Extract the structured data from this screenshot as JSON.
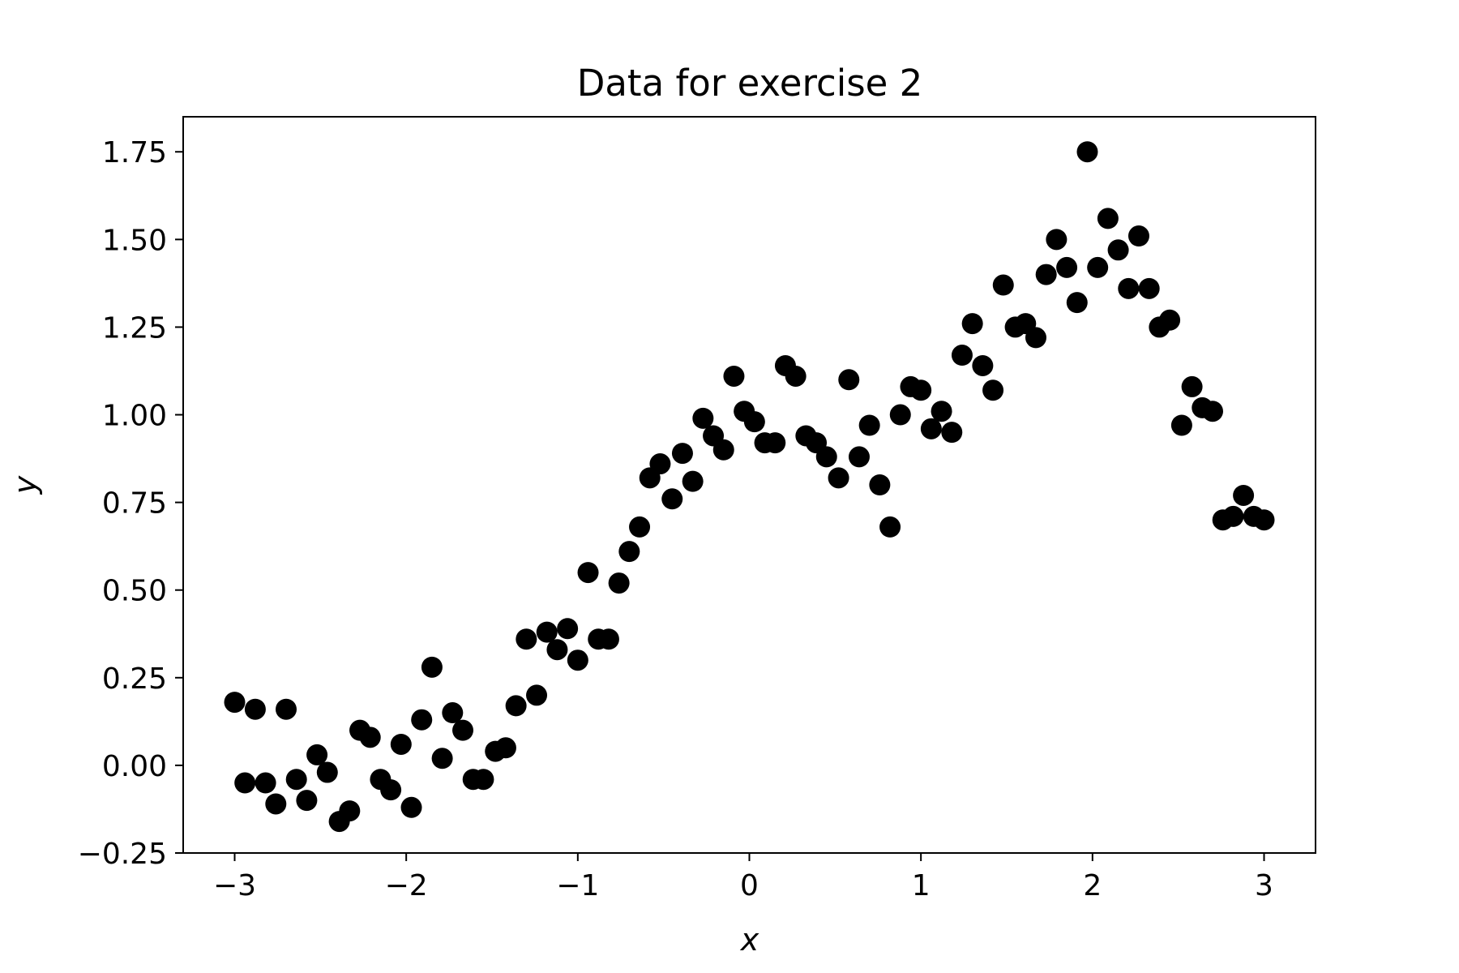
{
  "chart_data": {
    "type": "scatter",
    "title": "Data for exercise 2",
    "xlabel": "x",
    "ylabel": "y",
    "xlim": [
      -3.3,
      3.3
    ],
    "ylim": [
      -0.25,
      1.85
    ],
    "grid": false,
    "legend": "none",
    "marker_color": "#000000",
    "xticks": [
      -3,
      -2,
      -1,
      0,
      1,
      2,
      3
    ],
    "xtick_labels": [
      "−3",
      "−2",
      "−1",
      "0",
      "1",
      "2",
      "3"
    ],
    "yticks": [
      -0.25,
      0.0,
      0.25,
      0.5,
      0.75,
      1.0,
      1.25,
      1.5,
      1.75
    ],
    "ytick_labels": [
      "−0.25",
      "0.00",
      "0.25",
      "0.50",
      "0.75",
      "1.00",
      "1.25",
      "1.50",
      "1.75"
    ],
    "points": [
      [
        -3.0,
        0.18
      ],
      [
        -2.94,
        -0.05
      ],
      [
        -2.88,
        0.16
      ],
      [
        -2.82,
        -0.05
      ],
      [
        -2.76,
        -0.11
      ],
      [
        -2.7,
        0.16
      ],
      [
        -2.64,
        -0.04
      ],
      [
        -2.58,
        -0.1
      ],
      [
        -2.52,
        0.03
      ],
      [
        -2.46,
        -0.02
      ],
      [
        -2.39,
        -0.16
      ],
      [
        -2.33,
        -0.13
      ],
      [
        -2.27,
        0.1
      ],
      [
        -2.21,
        0.08
      ],
      [
        -2.15,
        -0.04
      ],
      [
        -2.09,
        -0.07
      ],
      [
        -2.03,
        0.06
      ],
      [
        -1.97,
        -0.12
      ],
      [
        -1.91,
        0.13
      ],
      [
        -1.85,
        0.28
      ],
      [
        -1.79,
        0.02
      ],
      [
        -1.73,
        0.15
      ],
      [
        -1.67,
        0.1
      ],
      [
        -1.61,
        -0.04
      ],
      [
        -1.55,
        -0.04
      ],
      [
        -1.48,
        0.04
      ],
      [
        -1.42,
        0.05
      ],
      [
        -1.36,
        0.17
      ],
      [
        -1.3,
        0.36
      ],
      [
        -1.24,
        0.2
      ],
      [
        -1.18,
        0.38
      ],
      [
        -1.12,
        0.33
      ],
      [
        -1.06,
        0.39
      ],
      [
        -1.0,
        0.3
      ],
      [
        -0.94,
        0.55
      ],
      [
        -0.88,
        0.36
      ],
      [
        -0.82,
        0.36
      ],
      [
        -0.76,
        0.52
      ],
      [
        -0.7,
        0.61
      ],
      [
        -0.64,
        0.68
      ],
      [
        -0.58,
        0.82
      ],
      [
        -0.52,
        0.86
      ],
      [
        -0.45,
        0.76
      ],
      [
        -0.39,
        0.89
      ],
      [
        -0.33,
        0.81
      ],
      [
        -0.27,
        0.99
      ],
      [
        -0.21,
        0.94
      ],
      [
        -0.15,
        0.9
      ],
      [
        -0.09,
        1.11
      ],
      [
        -0.03,
        1.01
      ],
      [
        0.03,
        0.98
      ],
      [
        0.09,
        0.92
      ],
      [
        0.15,
        0.92
      ],
      [
        0.21,
        1.14
      ],
      [
        0.27,
        1.11
      ],
      [
        0.33,
        0.94
      ],
      [
        0.39,
        0.92
      ],
      [
        0.45,
        0.88
      ],
      [
        0.52,
        0.82
      ],
      [
        0.58,
        1.1
      ],
      [
        0.64,
        0.88
      ],
      [
        0.7,
        0.97
      ],
      [
        0.76,
        0.8
      ],
      [
        0.82,
        0.68
      ],
      [
        0.88,
        1.0
      ],
      [
        0.94,
        1.08
      ],
      [
        1.0,
        1.07
      ],
      [
        1.06,
        0.96
      ],
      [
        1.12,
        1.01
      ],
      [
        1.18,
        0.95
      ],
      [
        1.24,
        1.17
      ],
      [
        1.3,
        1.26
      ],
      [
        1.36,
        1.14
      ],
      [
        1.42,
        1.07
      ],
      [
        1.48,
        1.37
      ],
      [
        1.55,
        1.25
      ],
      [
        1.61,
        1.26
      ],
      [
        1.67,
        1.22
      ],
      [
        1.73,
        1.4
      ],
      [
        1.79,
        1.5
      ],
      [
        1.85,
        1.42
      ],
      [
        1.91,
        1.32
      ],
      [
        1.97,
        1.75
      ],
      [
        2.03,
        1.42
      ],
      [
        2.09,
        1.56
      ],
      [
        2.15,
        1.47
      ],
      [
        2.21,
        1.36
      ],
      [
        2.27,
        1.51
      ],
      [
        2.33,
        1.36
      ],
      [
        2.39,
        1.25
      ],
      [
        2.45,
        1.27
      ],
      [
        2.52,
        0.97
      ],
      [
        2.58,
        1.08
      ],
      [
        2.64,
        1.02
      ],
      [
        2.7,
        1.01
      ],
      [
        2.76,
        0.7
      ],
      [
        2.82,
        0.71
      ],
      [
        2.88,
        0.77
      ],
      [
        2.94,
        0.71
      ],
      [
        3.0,
        0.7
      ]
    ]
  }
}
